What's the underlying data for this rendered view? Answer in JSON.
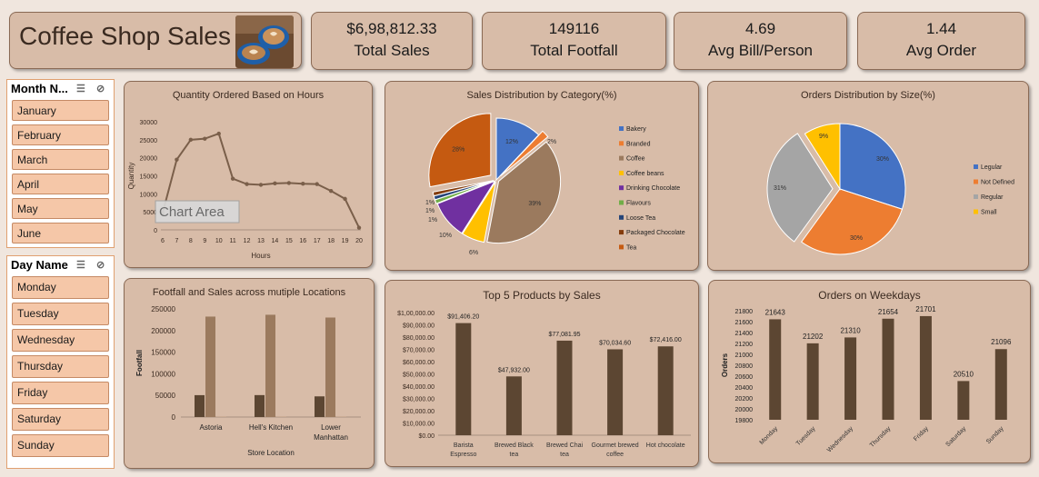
{
  "header": {
    "title": "Coffee Shop Sales",
    "image_icon": "coffee-cups-photo"
  },
  "kpis": [
    {
      "value": "$6,98,812.33",
      "label": "Total Sales"
    },
    {
      "value": "149116",
      "label": "Total Footfall"
    },
    {
      "value": "4.69",
      "label": "Avg Bill/Person"
    },
    {
      "value": "1.44",
      "label": "Avg Order"
    }
  ],
  "slicers": {
    "month": {
      "title": "Month N...",
      "items": [
        "January",
        "February",
        "March",
        "April",
        "May",
        "June"
      ]
    },
    "day": {
      "title": "Day Name",
      "items": [
        "Monday",
        "Tuesday",
        "Wednesday",
        "Thursday",
        "Friday",
        "Saturday",
        "Sunday"
      ]
    }
  },
  "colors": {
    "brown_dark": "#5c4632",
    "brown_light": "#9b7a5e",
    "line": "#7a5f4a"
  },
  "chart_data": [
    {
      "id": "hours",
      "type": "line",
      "title": "Quantity Ordered Based on Hours",
      "xlabel": "Hours",
      "ylabel": "Quantity",
      "x": [
        6,
        7,
        8,
        9,
        10,
        11,
        12,
        13,
        14,
        15,
        16,
        17,
        18,
        19,
        20
      ],
      "values": [
        4800,
        19500,
        25000,
        25300,
        26700,
        14200,
        12700,
        12500,
        12900,
        13000,
        12800,
        12700,
        10800,
        8600,
        600
      ],
      "ylim": [
        0,
        30000
      ],
      "yticks": [
        "0",
        "5000",
        "10000",
        "15000",
        "20000",
        "25000",
        "30000"
      ],
      "tooltip": "Chart Area"
    },
    {
      "id": "category",
      "type": "pie",
      "title": "Sales Distribution by Category(%)",
      "labels": [
        "Bakery",
        "Branded",
        "Coffee",
        "Coffee beans",
        "Drinking Chocolate",
        "Flavours",
        "Loose Tea",
        "Packaged Chocolate",
        "Tea"
      ],
      "values": [
        12,
        2,
        39,
        6,
        10,
        1,
        1,
        1,
        28
      ],
      "pct_labels": [
        "12%",
        "2%",
        "39%",
        "6%",
        "10%",
        "1%",
        "1%",
        "1%",
        "28%"
      ],
      "colors": [
        "#4472c4",
        "#ed7d31",
        "#9b7a5e",
        "#ffc000",
        "#7030a0",
        "#70ad47",
        "#264478",
        "#843c0c",
        "#c55a11"
      ]
    },
    {
      "id": "size",
      "type": "pie",
      "title": "Orders Distribution by Size(%)",
      "labels": [
        "Legular",
        "Not Defined",
        "Regular",
        "Small"
      ],
      "values": [
        30,
        30,
        31,
        9
      ],
      "pct_labels": [
        "30%",
        "30%",
        "31%",
        "9%"
      ],
      "colors": [
        "#4472c4",
        "#ed7d31",
        "#a5a5a5",
        "#ffc000"
      ]
    },
    {
      "id": "locations",
      "type": "bar",
      "title": "Footfall and Sales across mutiple Locations",
      "xlabel": "Store Location",
      "ylabel": "Footfall",
      "categories": [
        "Astoria",
        "Hell's Kitchen",
        "Lower Manhattan"
      ],
      "series": [
        {
          "values": [
            50599,
            50735,
            47782
          ]
        },
        {
          "values": [
            232244,
            236511,
            230057
          ]
        },
        {
          "values": [
            1500,
            1500,
            1500
          ]
        }
      ],
      "ylim": [
        0,
        250000
      ],
      "yticks": [
        "0",
        "50000",
        "100000",
        "150000",
        "200000",
        "250000"
      ]
    },
    {
      "id": "products",
      "type": "bar",
      "title": "Top 5 Products by Sales",
      "categories": [
        "Barista Espresso",
        "Brewed Black tea",
        "Brewed Chai tea",
        "Gourmet brewed coffee",
        "Hot chocolate"
      ],
      "values": [
        91406.2,
        47932.0,
        77081.95,
        70034.6,
        72416.0
      ],
      "value_labels": [
        "$91,406.20",
        "$47,932.00",
        "$77,081.95",
        "$70,034.60",
        "$72,416.00"
      ],
      "ylim": [
        0,
        100000
      ],
      "yticks": [
        "$0.00",
        "$10,000.00",
        "$20,000.00",
        "$30,000.00",
        "$40,000.00",
        "$50,000.00",
        "$60,000.00",
        "$70,000.00",
        "$80,000.00",
        "$90,000.00",
        "$1,00,000.00"
      ]
    },
    {
      "id": "weekdays",
      "type": "bar",
      "title": "Orders on Weekdays",
      "ylabel": "Orders",
      "categories": [
        "Monday",
        "Tuesday",
        "Wednesday",
        "Thursday",
        "Friday",
        "Saturday",
        "Sunday"
      ],
      "values": [
        21643,
        21202,
        21310,
        21654,
        21701,
        20510,
        21096
      ],
      "value_labels": [
        "21643",
        "21202",
        "21310",
        "21654",
        "21701",
        "20510",
        "21096"
      ],
      "ylim": [
        19800,
        21800
      ],
      "yticks": [
        "19800",
        "20000",
        "20200",
        "20400",
        "20600",
        "20800",
        "21000",
        "21200",
        "21400",
        "21600",
        "21800"
      ]
    }
  ]
}
